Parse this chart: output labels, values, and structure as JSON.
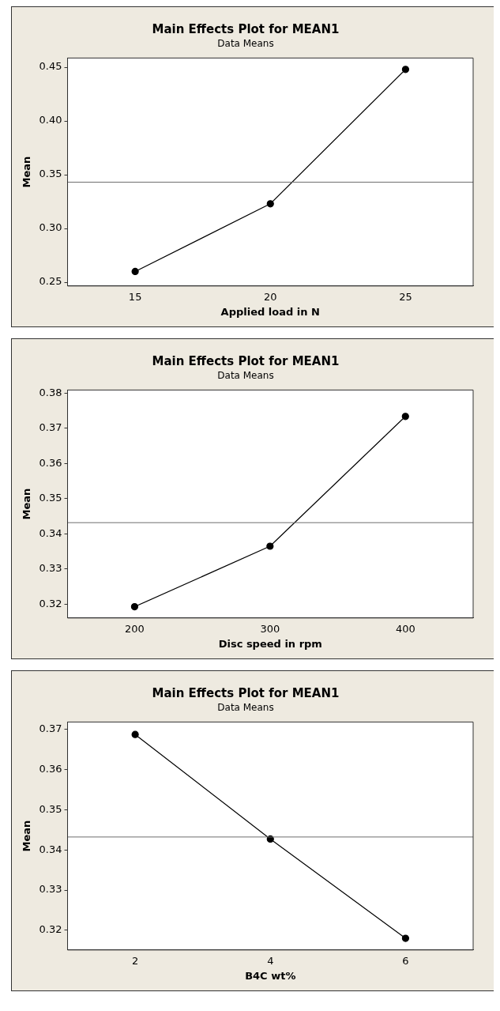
{
  "chart_data": [
    {
      "type": "line",
      "title": "Main Effects Plot for MEAN1",
      "subtitle": "Data Means",
      "xlabel": "Applied load in N",
      "ylabel": "Mean",
      "x": [
        15,
        20,
        25
      ],
      "series": [
        {
          "color": "#000000",
          "values": [
            0.26,
            0.323,
            0.448
          ]
        }
      ],
      "xlim": [
        12.5,
        27.5
      ],
      "xticks": [
        15,
        20,
        25
      ],
      "ylim": [
        0.2465,
        0.4586
      ],
      "yticks": [
        {
          "value": 0.25,
          "label": "0.25"
        },
        {
          "value": 0.3,
          "label": "0.30"
        },
        {
          "value": 0.35,
          "label": "0.35"
        },
        {
          "value": 0.4,
          "label": "0.40"
        },
        {
          "value": 0.45,
          "label": "0.45"
        }
      ],
      "ref_lines": [
        {
          "axis": "y",
          "value": 0.3431,
          "color": "#6e6e6e"
        }
      ],
      "marker": "circle",
      "line_style": "solid"
    },
    {
      "type": "line",
      "title": "Main Effects Plot for MEAN1",
      "subtitle": "Data Means",
      "xlabel": "Disc speed in rpm",
      "ylabel": "Mean",
      "x": [
        200,
        300,
        400
      ],
      "series": [
        {
          "color": "#000000",
          "values": [
            0.3193,
            0.3365,
            0.3734
          ]
        }
      ],
      "xlim": [
        150.5,
        450
      ],
      "xticks": [
        200,
        300,
        400
      ],
      "ylim": [
        0.3161,
        0.3809
      ],
      "yticks": [
        0.32,
        0.33,
        0.34,
        0.35,
        0.36,
        0.37,
        0.38
      ],
      "ref_lines": [
        {
          "axis": "y",
          "value": 0.3432,
          "color": "#6e6e6e"
        }
      ],
      "marker": "circle",
      "line_style": "solid"
    },
    {
      "type": "line",
      "title": "Main Effects Plot for MEAN1",
      "subtitle": "Data Means",
      "xlabel": "B4C wt%",
      "ylabel": "Mean",
      "x": [
        2,
        4,
        6
      ],
      "series": [
        {
          "color": "#000000",
          "values": [
            0.3687,
            0.3427,
            0.318
          ]
        }
      ],
      "xlim": [
        1,
        7
      ],
      "xticks": [
        2,
        4,
        6
      ],
      "ylim": [
        0.3151,
        0.3718
      ],
      "yticks": [
        0.32,
        0.33,
        0.34,
        0.35,
        0.36,
        0.37
      ],
      "ref_lines": [
        {
          "axis": "y",
          "value": 0.3432,
          "color": "#6e6e6e"
        }
      ],
      "marker": "circle",
      "line_style": "solid"
    }
  ]
}
